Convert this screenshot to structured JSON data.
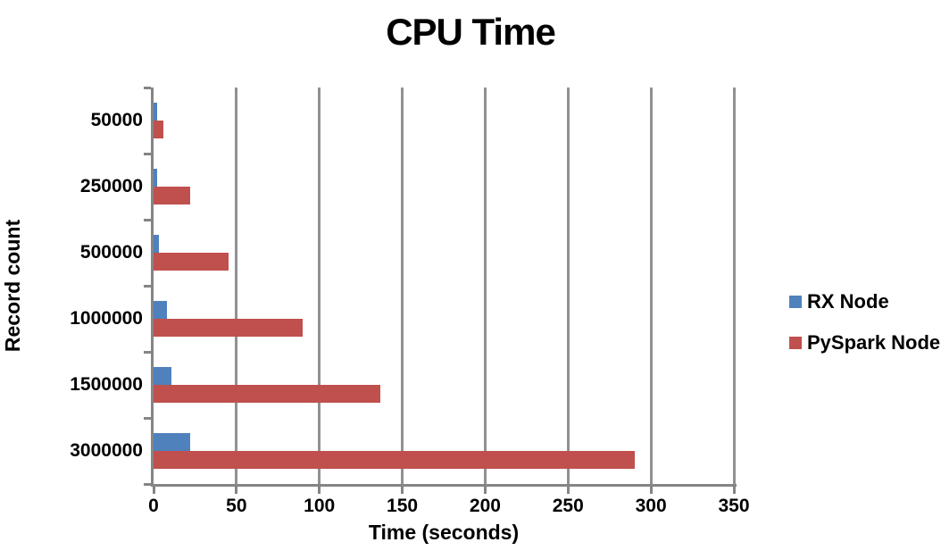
{
  "chart_data": {
    "type": "bar",
    "orientation": "horizontal",
    "title": "CPU Time",
    "xlabel": "Time (seconds)",
    "ylabel": "Record count",
    "categories": [
      "50000",
      "250000",
      "500000",
      "1000000",
      "1500000",
      "3000000"
    ],
    "series": [
      {
        "name": "RX Node",
        "color": "#4F81BD",
        "values": [
          2,
          2,
          3,
          8,
          11,
          22
        ]
      },
      {
        "name": "PySpark Node",
        "color": "#C0504D",
        "values": [
          6,
          22,
          45,
          90,
          137,
          290
        ]
      }
    ],
    "xlim": [
      0,
      350
    ],
    "xticks": [
      0,
      50,
      100,
      150,
      200,
      250,
      300,
      350
    ],
    "grid": true,
    "legend_position": "right",
    "colors": {
      "gridline": "#919191",
      "axis": "#858585",
      "text": "#000000",
      "background": "#FFFFFF"
    }
  }
}
